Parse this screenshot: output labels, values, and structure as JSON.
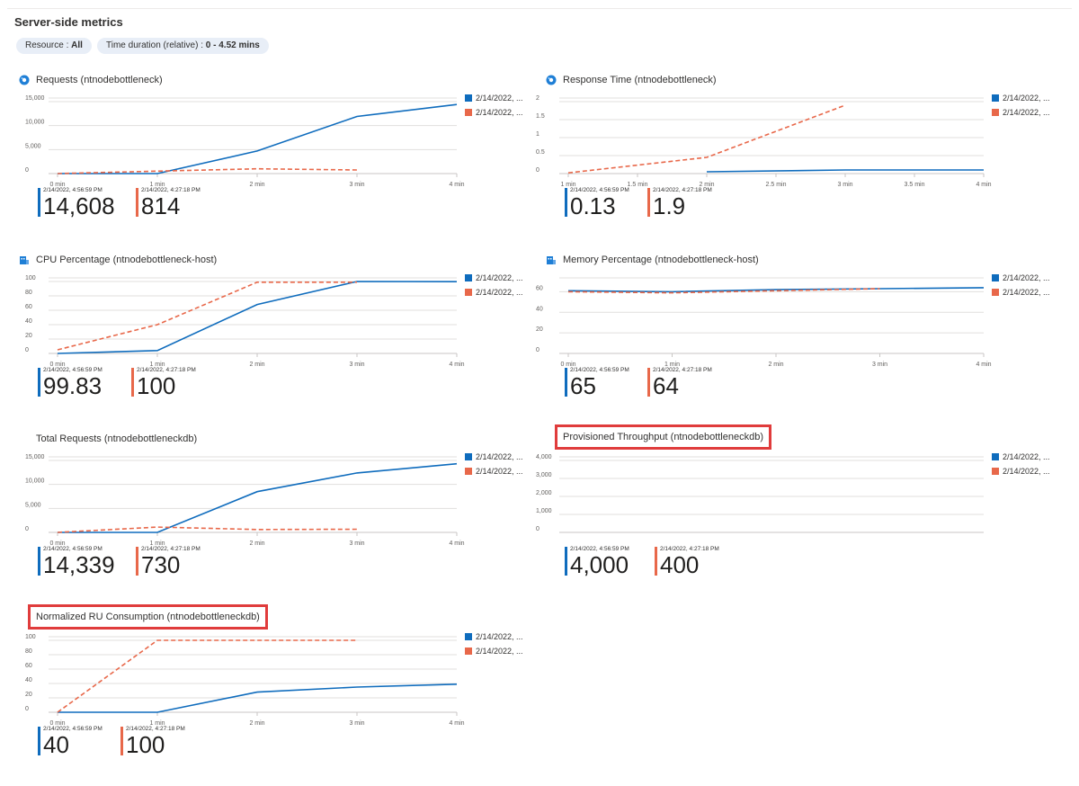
{
  "header": {
    "title": "Server-side metrics",
    "filters": [
      {
        "label": "Resource : ",
        "value": "All"
      },
      {
        "label": "Time duration (relative) : ",
        "value": "0 - 4.52 mins"
      }
    ]
  },
  "colors": {
    "series_blue": "#0f6cbd",
    "series_orange": "#e8684a",
    "highlight": "#e03c3c"
  },
  "panels": [
    {
      "title": "Requests (ntnodebottleneck)",
      "icon": "app-insights-icon",
      "legend": [
        "2/14/2022, ...",
        "2/14/2022, ..."
      ],
      "stats": [
        {
          "label": "2/14/2022, 4:56:59 PM",
          "value": "14,608"
        },
        {
          "label": "2/14/2022, 4:27:18 PM",
          "value": "814"
        }
      ]
    },
    {
      "title": "Response Time (ntnodebottleneck)",
      "icon": "app-insights-icon",
      "legend": [
        "2/14/2022, ...",
        "2/14/2022, ..."
      ],
      "stats": [
        {
          "label": "2/14/2022, 4:56:59 PM",
          "value": "0.13"
        },
        {
          "label": "2/14/2022, 4:27:18 PM",
          "value": "1.9"
        }
      ]
    },
    {
      "title": "CPU Percentage (ntnodebottleneck-host)",
      "icon": "app-service-plan-icon",
      "legend": [
        "2/14/2022, ...",
        "2/14/2022, ..."
      ],
      "stats": [
        {
          "label": "2/14/2022, 4:56:59 PM",
          "value": "99.83"
        },
        {
          "label": "2/14/2022, 4:27:18 PM",
          "value": "100"
        }
      ]
    },
    {
      "title": "Memory Percentage (ntnodebottleneck-host)",
      "icon": "app-service-plan-icon",
      "legend": [
        "2/14/2022, ...",
        "2/14/2022, ..."
      ],
      "stats": [
        {
          "label": "2/14/2022, 4:56:59 PM",
          "value": "65"
        },
        {
          "label": "2/14/2022, 4:27:18 PM",
          "value": "64"
        }
      ]
    },
    {
      "title": "Total Requests (ntnodebottleneckdb)",
      "icon": "",
      "legend": [
        "2/14/2022, ...",
        "2/14/2022, ..."
      ],
      "stats": [
        {
          "label": "2/14/2022, 4:56:59 PM",
          "value": "14,339"
        },
        {
          "label": "2/14/2022, 4:27:18 PM",
          "value": "730"
        }
      ]
    },
    {
      "title": "Provisioned Throughput (ntnodebottleneckdb)",
      "icon": "",
      "legend": [
        "2/14/2022, ...",
        "2/14/2022, ..."
      ],
      "stats": [
        {
          "label": "2/14/2022, 4:56:59 PM",
          "value": "4,000"
        },
        {
          "label": "2/14/2022, 4:27:18 PM",
          "value": "400"
        }
      ]
    },
    {
      "title": "Normalized RU Consumption (ntnodebottleneckdb)",
      "icon": "",
      "legend": [
        "2/14/2022, ...",
        "2/14/2022, ..."
      ],
      "stats": [
        {
          "label": "2/14/2022, 4:56:59 PM",
          "value": "40"
        },
        {
          "label": "2/14/2022, 4:27:18 PM",
          "value": "100"
        }
      ]
    }
  ],
  "chart_data": [
    {
      "type": "line",
      "title": "Requests (ntnodebottleneck)",
      "x_ticks": [
        "0 min",
        "1 min",
        "2 min",
        "3 min",
        "4 min"
      ],
      "xlim": [
        0,
        4
      ],
      "y_ticks": [
        "0",
        "5,000",
        "10,000",
        "15,000"
      ],
      "ylim": [
        0,
        15000
      ],
      "series": [
        {
          "name": "2/14/2022, 4:56:59 PM",
          "style": "solid",
          "x": [
            0,
            1,
            2,
            3,
            4
          ],
          "y": [
            0,
            0,
            4700,
            11900,
            14400
          ]
        },
        {
          "name": "2/14/2022, 4:27:18 PM",
          "style": "dashed",
          "x": [
            0,
            1,
            2,
            3
          ],
          "y": [
            0,
            500,
            1000,
            750
          ]
        }
      ]
    },
    {
      "type": "line",
      "title": "Response Time (ntnodebottleneck)",
      "x_ticks": [
        "1 min",
        "1.5 min",
        "2 min",
        "2.5 min",
        "3 min",
        "3.5 min",
        "4 min"
      ],
      "xlim": [
        1,
        4
      ],
      "y_ticks": [
        "0",
        "0.5",
        "1",
        "1.5",
        "2"
      ],
      "ylim": [
        0,
        2
      ],
      "series": [
        {
          "name": "2/14/2022, 4:56:59 PM",
          "style": "solid",
          "x": [
            2,
            3,
            4
          ],
          "y": [
            0.05,
            0.1,
            0.1
          ]
        },
        {
          "name": "2/14/2022, 4:27:18 PM",
          "style": "dashed",
          "x": [
            1,
            2,
            3
          ],
          "y": [
            0.02,
            0.45,
            1.9
          ]
        }
      ]
    },
    {
      "type": "line",
      "title": "CPU Percentage (ntnodebottleneck-host)",
      "x_ticks": [
        "0 min",
        "1 min",
        "2 min",
        "3 min",
        "4 min"
      ],
      "xlim": [
        0,
        4
      ],
      "y_ticks": [
        "0",
        "20",
        "40",
        "60",
        "80",
        "100"
      ],
      "ylim": [
        0,
        100
      ],
      "series": [
        {
          "name": "2/14/2022, 4:56:59 PM",
          "style": "solid",
          "x": [
            0,
            1,
            2,
            3,
            4
          ],
          "y": [
            0,
            4,
            68,
            100,
            99.8
          ]
        },
        {
          "name": "2/14/2022, 4:27:18 PM",
          "style": "dashed",
          "x": [
            0,
            1,
            2,
            3
          ],
          "y": [
            5,
            40,
            99,
            99
          ]
        }
      ]
    },
    {
      "type": "line",
      "title": "Memory Percentage (ntnodebottleneck-host)",
      "x_ticks": [
        "0 min",
        "1 min",
        "2 min",
        "3 min",
        "4 min"
      ],
      "xlim": [
        0,
        4
      ],
      "y_ticks": [
        "0",
        "20",
        "40",
        "60"
      ],
      "ylim": [
        0,
        70
      ],
      "series": [
        {
          "name": "2/14/2022, 4:56:59 PM",
          "style": "solid",
          "x": [
            0,
            1,
            2,
            3,
            4
          ],
          "y": [
            61,
            60,
            62,
            63,
            64
          ]
        },
        {
          "name": "2/14/2022, 4:27:18 PM",
          "style": "dashed",
          "x": [
            0,
            1,
            2,
            3
          ],
          "y": [
            60,
            59,
            61,
            63
          ]
        }
      ]
    },
    {
      "type": "line",
      "title": "Total Requests (ntnodebottleneckdb)",
      "x_ticks": [
        "0 min",
        "1 min",
        "2 min",
        "3 min",
        "4 min"
      ],
      "xlim": [
        0,
        4
      ],
      "y_ticks": [
        "0",
        "5,000",
        "10,000",
        "15,000"
      ],
      "ylim": [
        0,
        15000
      ],
      "series": [
        {
          "name": "2/14/2022, 4:56:59 PM",
          "style": "solid",
          "x": [
            0,
            1,
            2,
            3,
            4
          ],
          "y": [
            0,
            0,
            8500,
            12400,
            14300
          ]
        },
        {
          "name": "2/14/2022, 4:27:18 PM",
          "style": "dashed",
          "x": [
            0,
            1,
            2,
            3
          ],
          "y": [
            0,
            1100,
            600,
            650
          ]
        }
      ]
    },
    {
      "type": "line",
      "title": "Provisioned Throughput (ntnodebottleneckdb)",
      "x_ticks": [],
      "xlim": [
        0,
        4
      ],
      "y_ticks": [
        "0",
        "1,000",
        "2,000",
        "3,000",
        "4,000"
      ],
      "ylim": [
        0,
        4000
      ],
      "series": []
    },
    {
      "type": "line",
      "title": "Normalized RU Consumption (ntnodebottleneckdb)",
      "x_ticks": [
        "0 min",
        "1 min",
        "2 min",
        "3 min",
        "4 min"
      ],
      "xlim": [
        0,
        4
      ],
      "y_ticks": [
        "0",
        "20",
        "40",
        "60",
        "80",
        "100"
      ],
      "ylim": [
        0,
        100
      ],
      "series": [
        {
          "name": "2/14/2022, 4:56:59 PM",
          "style": "solid",
          "x": [
            0,
            1,
            2,
            3,
            4
          ],
          "y": [
            0,
            0,
            28,
            35,
            39
          ]
        },
        {
          "name": "2/14/2022, 4:27:18 PM",
          "style": "dashed",
          "x": [
            0,
            1,
            2,
            3
          ],
          "y": [
            0,
            100,
            100,
            100
          ]
        }
      ]
    }
  ]
}
